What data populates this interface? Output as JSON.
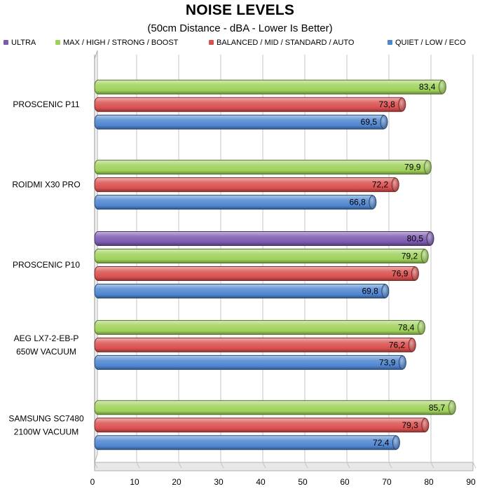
{
  "chart_data": {
    "type": "bar",
    "orientation": "horizontal",
    "title": "NOISE LEVELS",
    "subtitle": "(50cm Distance - dBA - Lower Is Better)",
    "xlim": [
      0,
      90
    ],
    "x_ticks": [
      "0",
      "10",
      "20",
      "30",
      "40",
      "50",
      "60",
      "70",
      "80",
      "90"
    ],
    "grid": true,
    "legend_position": "top",
    "categories": [
      [
        "PROSCENIC P11"
      ],
      [
        "ROIDMI X30 PRO"
      ],
      [
        "PROSCENIC P10"
      ],
      [
        "AEG LX7-2-EB-P",
        "650W VACUUM"
      ],
      [
        "SAMSUNG SC7480",
        "2100W VACUUM"
      ]
    ],
    "series": [
      {
        "name": "ULTRA",
        "color": "#7b5ab0",
        "values": [
          null,
          null,
          80.5,
          null,
          null
        ],
        "labels": [
          null,
          null,
          "80,5",
          null,
          null
        ]
      },
      {
        "name": "MAX / HIGH / STRONG / BOOST",
        "color": "#9fd15a",
        "values": [
          83.4,
          79.9,
          79.2,
          78.4,
          85.7
        ],
        "labels": [
          "83,4",
          "79,9",
          "79,2",
          "78,4",
          "85,7"
        ]
      },
      {
        "name": "BALANCED / MID / STANDARD / AUTO",
        "color": "#d9504f",
        "values": [
          73.8,
          72.2,
          76.9,
          76.2,
          79.3
        ],
        "labels": [
          "73,8",
          "72,2",
          "76,9",
          "76,2",
          "79,3"
        ]
      },
      {
        "name": "QUIET / LOW / ECO",
        "color": "#4f86d0",
        "values": [
          69.5,
          66.8,
          69.8,
          73.9,
          72.4
        ],
        "labels": [
          "69,5",
          "66,8",
          "69,8",
          "73,9",
          "72,4"
        ]
      }
    ]
  }
}
